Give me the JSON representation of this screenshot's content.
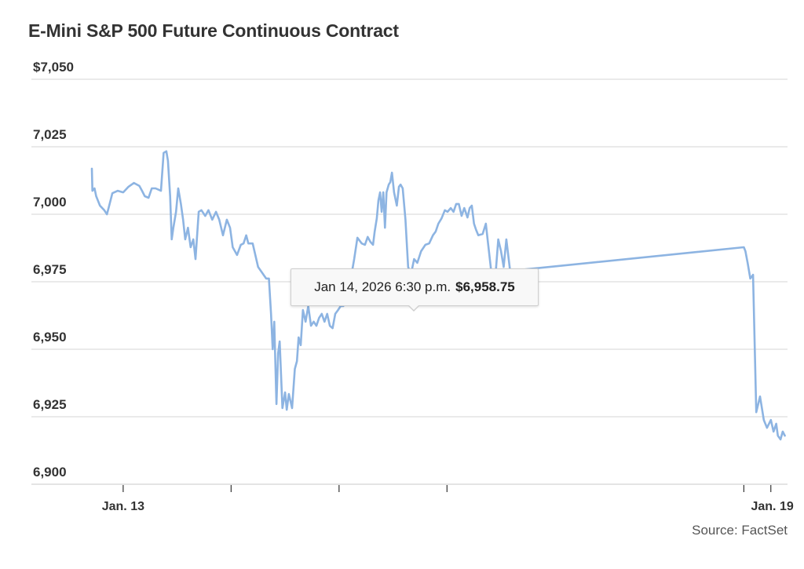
{
  "chart_data": {
    "type": "line",
    "title": "E-Mini S&P 500 Future Continuous Contract",
    "xlabel": "",
    "ylabel": "",
    "ylim": [
      6900,
      7050
    ],
    "yticks": [
      7050,
      7025,
      7000,
      6975,
      6950,
      6925,
      6900
    ],
    "ytick_labels": [
      "$7,050",
      "7,025",
      "7,000",
      "6,975",
      "6,950",
      "6,925",
      "6,900"
    ],
    "x_domain_days": [
      12.71,
      19.14
    ],
    "xticks_days": [
      13,
      14,
      15,
      16,
      18.75,
      19
    ],
    "xtick_labels": [
      "Jan. 13",
      "",
      "",
      "",
      "",
      "Jan. 19"
    ],
    "grid": true,
    "legend": "none",
    "source": "Source: FactSet",
    "series": [
      {
        "name": "E-Mini S&P 500 Future Continuous Contract",
        "color": "#8db4e2",
        "x_days": [
          12.71,
          12.715,
          12.735,
          12.75,
          12.785,
          12.825,
          12.85,
          12.865,
          12.9,
          12.95,
          13.0,
          13.05,
          13.1,
          13.15,
          13.175,
          13.2,
          13.235,
          13.265,
          13.3,
          13.35,
          13.375,
          13.4,
          13.415,
          13.435,
          13.45,
          13.465,
          13.49,
          13.51,
          13.535,
          13.555,
          13.575,
          13.6,
          13.625,
          13.65,
          13.67,
          13.7,
          13.725,
          13.76,
          13.79,
          13.825,
          13.86,
          13.89,
          13.925,
          13.96,
          13.99,
          14.015,
          14.055,
          14.09,
          14.115,
          14.14,
          14.16,
          14.2,
          14.25,
          14.325,
          14.35,
          14.37,
          14.385,
          14.4,
          14.42,
          14.435,
          14.45,
          14.475,
          14.5,
          14.515,
          14.535,
          14.565,
          14.59,
          14.61,
          14.625,
          14.645,
          14.665,
          14.69,
          14.715,
          14.74,
          14.765,
          14.79,
          14.815,
          14.84,
          14.865,
          14.89,
          14.915,
          14.94,
          14.965,
          14.99,
          15.015,
          15.04,
          15.065,
          15.09,
          15.115,
          15.14,
          15.17,
          15.21,
          15.24,
          15.265,
          15.29,
          15.315,
          15.33,
          15.35,
          15.365,
          15.38,
          15.395,
          15.41,
          15.425,
          15.44,
          15.46,
          15.475,
          15.49,
          15.51,
          15.535,
          15.555,
          15.57,
          15.59,
          15.615,
          15.64,
          15.665,
          15.695,
          15.725,
          15.76,
          15.8,
          15.835,
          15.87,
          15.895,
          15.92,
          15.95,
          15.98,
          16.005,
          16.035,
          16.06,
          16.085,
          16.11,
          16.135,
          16.16,
          16.19,
          16.21,
          16.23,
          16.25,
          16.27,
          16.29,
          16.33,
          16.36,
          16.38,
          16.405,
          16.43,
          16.455,
          16.475,
          16.5,
          16.525,
          16.55,
          16.585,
          18.75,
          18.765,
          18.785,
          18.81,
          18.835,
          18.865,
          18.9,
          18.935,
          18.965,
          19.0,
          19.025,
          19.05,
          19.065,
          19.09,
          19.11,
          19.13
        ],
        "values": [
          7016.9,
          7008.7,
          7009.6,
          7006.7,
          7003.2,
          7001.5,
          7000.0,
          7002.3,
          7007.8,
          7008.7,
          7008.1,
          7010.2,
          7011.6,
          7010.5,
          7008.7,
          7006.7,
          7006.1,
          7009.6,
          7009.6,
          7008.7,
          7022.7,
          7023.3,
          7019.8,
          7006.7,
          6990.7,
          6995.0,
          7000.9,
          7009.6,
          7003.8,
          6998.0,
          6990.7,
          6995.0,
          6987.8,
          6990.7,
          6983.4,
          7000.9,
          7001.5,
          6999.4,
          7001.5,
          6998.0,
          7000.9,
          6998.0,
          6992.2,
          6998.0,
          6995.0,
          6987.8,
          6984.9,
          6988.7,
          6989.2,
          6992.2,
          6989.2,
          6989.2,
          6980.5,
          6976.2,
          6976.2,
          6963.1,
          6950.0,
          6960.2,
          6929.7,
          6948.5,
          6952.9,
          6928.2,
          6934.0,
          6927.6,
          6933.4,
          6928.2,
          6942.7,
          6945.6,
          6954.4,
          6951.5,
          6964.5,
          6960.2,
          6966.0,
          6958.7,
          6960.2,
          6958.7,
          6961.6,
          6963.1,
          6960.2,
          6963.1,
          6958.7,
          6957.8,
          6963.1,
          6964.5,
          6966.0,
          6966.0,
          6968.9,
          6971.8,
          6977.6,
          6983.4,
          6991.3,
          6989.2,
          6988.7,
          6991.6,
          6989.8,
          6988.7,
          6993.6,
          6998.5,
          7005.2,
          7008.1,
          7000.9,
          7008.1,
          6995.0,
          7008.1,
          7011.0,
          7011.9,
          7015.4,
          7008.1,
          7003.2,
          7010.2,
          7011.0,
          7009.6,
          6998.0,
          6980.5,
          6977.6,
          6983.4,
          6982.0,
          6986.3,
          6988.7,
          6989.2,
          6992.2,
          6993.6,
          6996.5,
          6998.5,
          7001.5,
          7000.9,
          7002.3,
          7000.9,
          7003.8,
          7003.8,
          6999.4,
          7002.3,
          6998.8,
          7002.3,
          7003.2,
          6996.5,
          6994.2,
          6992.2,
          6992.7,
          6996.5,
          6989.2,
          6980.5,
          6967.4,
          6980.5,
          6990.7,
          6986.3,
          6980.5,
          6990.7,
          6979.0,
          6987.8,
          6986.3,
          6982.0,
          6976.2,
          6977.6,
          6926.7,
          6932.5,
          6923.8,
          6920.9,
          6923.8,
          6919.5,
          6922.4,
          6918.0,
          6916.6,
          6919.5,
          6918.0,
          6921.0,
          6913.7,
          6912.2,
          6908.4,
          6909.3
        ]
      }
    ],
    "tooltip": {
      "date": "Jan 14, 2026 6:30 p.m.",
      "value": "$6,958.75"
    }
  }
}
